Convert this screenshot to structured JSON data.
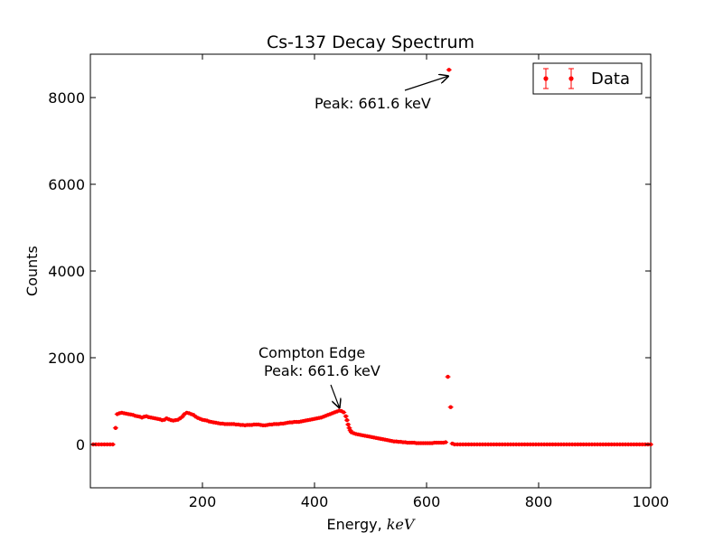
{
  "chart_data": {
    "type": "scatter",
    "title": "Cs-137 Decay Spectrum",
    "xlabel_prefix": "Energy, ",
    "xlabel_math": "keV",
    "ylabel": "Counts",
    "xlim": [
      0,
      1000
    ],
    "ylim": [
      -1000,
      9000
    ],
    "xticks": [
      200,
      400,
      600,
      800,
      1000
    ],
    "yticks": [
      0,
      2000,
      4000,
      6000,
      8000
    ],
    "xtick_labels": [
      "200",
      "400",
      "600",
      "800",
      "1000"
    ],
    "ytick_labels": [
      "0",
      "2000",
      "4000",
      "6000",
      "8000"
    ],
    "grid": false,
    "legend": {
      "position": "top-right",
      "entries": [
        {
          "label": "Data",
          "color": "#ff0000",
          "marker": "errorbar-dot"
        }
      ]
    },
    "marker_color": "#ff0000",
    "annotations": [
      {
        "text_lines": [
          "Peak: 661.6 keV"
        ],
        "text_at": [
          400,
          7750
        ],
        "arrow_to": [
          640,
          8500
        ]
      },
      {
        "text_lines": [
          "Compton Edge",
          "Peak: 661.6 keV"
        ],
        "text_at": [
          300,
          2000
        ],
        "arrow_to": [
          445,
          830
        ]
      }
    ],
    "series": [
      {
        "name": "Data",
        "points": [
          [
            5,
            0
          ],
          [
            10,
            0
          ],
          [
            15,
            0
          ],
          [
            20,
            0
          ],
          [
            25,
            0
          ],
          [
            30,
            0
          ],
          [
            35,
            0
          ],
          [
            40,
            0
          ],
          [
            45,
            380
          ],
          [
            48,
            700
          ],
          [
            52,
            720
          ],
          [
            56,
            730
          ],
          [
            60,
            720
          ],
          [
            64,
            710
          ],
          [
            68,
            700
          ],
          [
            72,
            690
          ],
          [
            76,
            680
          ],
          [
            80,
            660
          ],
          [
            84,
            650
          ],
          [
            88,
            640
          ],
          [
            92,
            620
          ],
          [
            96,
            640
          ],
          [
            100,
            650
          ],
          [
            104,
            630
          ],
          [
            108,
            620
          ],
          [
            112,
            610
          ],
          [
            116,
            600
          ],
          [
            120,
            590
          ],
          [
            124,
            580
          ],
          [
            128,
            560
          ],
          [
            132,
            570
          ],
          [
            136,
            600
          ],
          [
            140,
            580
          ],
          [
            144,
            560
          ],
          [
            148,
            550
          ],
          [
            152,
            560
          ],
          [
            156,
            570
          ],
          [
            160,
            600
          ],
          [
            164,
            640
          ],
          [
            168,
            700
          ],
          [
            172,
            730
          ],
          [
            176,
            720
          ],
          [
            180,
            700
          ],
          [
            184,
            680
          ],
          [
            188,
            640
          ],
          [
            192,
            610
          ],
          [
            196,
            590
          ],
          [
            200,
            570
          ],
          [
            204,
            560
          ],
          [
            208,
            550
          ],
          [
            212,
            530
          ],
          [
            216,
            520
          ],
          [
            220,
            510
          ],
          [
            224,
            500
          ],
          [
            228,
            490
          ],
          [
            232,
            480
          ],
          [
            236,
            480
          ],
          [
            240,
            470
          ],
          [
            244,
            470
          ],
          [
            248,
            470
          ],
          [
            252,
            470
          ],
          [
            256,
            470
          ],
          [
            260,
            460
          ],
          [
            264,
            460
          ],
          [
            268,
            450
          ],
          [
            272,
            450
          ],
          [
            276,
            440
          ],
          [
            280,
            450
          ],
          [
            284,
            450
          ],
          [
            288,
            450
          ],
          [
            292,
            460
          ],
          [
            296,
            460
          ],
          [
            300,
            460
          ],
          [
            304,
            450
          ],
          [
            308,
            440
          ],
          [
            312,
            440
          ],
          [
            316,
            450
          ],
          [
            320,
            460
          ],
          [
            324,
            460
          ],
          [
            328,
            470
          ],
          [
            332,
            470
          ],
          [
            336,
            470
          ],
          [
            340,
            480
          ],
          [
            344,
            480
          ],
          [
            348,
            490
          ],
          [
            352,
            500
          ],
          [
            356,
            510
          ],
          [
            360,
            510
          ],
          [
            364,
            520
          ],
          [
            368,
            520
          ],
          [
            372,
            520
          ],
          [
            376,
            530
          ],
          [
            380,
            540
          ],
          [
            384,
            550
          ],
          [
            388,
            560
          ],
          [
            392,
            570
          ],
          [
            396,
            580
          ],
          [
            400,
            590
          ],
          [
            404,
            600
          ],
          [
            408,
            610
          ],
          [
            412,
            620
          ],
          [
            416,
            640
          ],
          [
            420,
            660
          ],
          [
            424,
            680
          ],
          [
            428,
            700
          ],
          [
            432,
            720
          ],
          [
            436,
            740
          ],
          [
            440,
            760
          ],
          [
            444,
            780
          ],
          [
            448,
            770
          ],
          [
            452,
            740
          ],
          [
            456,
            650
          ],
          [
            458,
            560
          ],
          [
            460,
            460
          ],
          [
            462,
            380
          ],
          [
            464,
            320
          ],
          [
            466,
            280
          ],
          [
            470,
            260
          ],
          [
            474,
            240
          ],
          [
            478,
            230
          ],
          [
            482,
            220
          ],
          [
            486,
            210
          ],
          [
            490,
            200
          ],
          [
            494,
            190
          ],
          [
            498,
            180
          ],
          [
            502,
            170
          ],
          [
            506,
            160
          ],
          [
            510,
            150
          ],
          [
            514,
            140
          ],
          [
            518,
            130
          ],
          [
            522,
            120
          ],
          [
            526,
            110
          ],
          [
            530,
            100
          ],
          [
            534,
            90
          ],
          [
            538,
            80
          ],
          [
            542,
            70
          ],
          [
            546,
            70
          ],
          [
            550,
            60
          ],
          [
            554,
            60
          ],
          [
            558,
            50
          ],
          [
            562,
            50
          ],
          [
            566,
            40
          ],
          [
            570,
            40
          ],
          [
            574,
            40
          ],
          [
            578,
            40
          ],
          [
            582,
            30
          ],
          [
            586,
            30
          ],
          [
            590,
            30
          ],
          [
            594,
            30
          ],
          [
            598,
            30
          ],
          [
            602,
            30
          ],
          [
            606,
            30
          ],
          [
            610,
            30
          ],
          [
            614,
            40
          ],
          [
            618,
            40
          ],
          [
            622,
            40
          ],
          [
            626,
            40
          ],
          [
            630,
            40
          ],
          [
            634,
            50
          ],
          [
            638,
            1560
          ],
          [
            640,
            8640
          ],
          [
            643,
            860
          ],
          [
            646,
            20
          ],
          [
            650,
            0
          ],
          [
            655,
            0
          ],
          [
            660,
            0
          ],
          [
            665,
            0
          ],
          [
            670,
            0
          ],
          [
            675,
            0
          ],
          [
            680,
            0
          ],
          [
            685,
            0
          ],
          [
            690,
            0
          ],
          [
            695,
            0
          ],
          [
            700,
            0
          ],
          [
            705,
            0
          ],
          [
            710,
            0
          ],
          [
            715,
            0
          ],
          [
            720,
            0
          ],
          [
            725,
            0
          ],
          [
            730,
            0
          ],
          [
            735,
            0
          ],
          [
            740,
            0
          ],
          [
            745,
            0
          ],
          [
            750,
            0
          ],
          [
            755,
            0
          ],
          [
            760,
            0
          ],
          [
            765,
            0
          ],
          [
            770,
            0
          ],
          [
            775,
            0
          ],
          [
            780,
            0
          ],
          [
            785,
            0
          ],
          [
            790,
            0
          ],
          [
            795,
            0
          ],
          [
            800,
            0
          ],
          [
            805,
            0
          ],
          [
            810,
            0
          ],
          [
            815,
            0
          ],
          [
            820,
            0
          ],
          [
            825,
            0
          ],
          [
            830,
            0
          ],
          [
            835,
            0
          ],
          [
            840,
            0
          ],
          [
            845,
            0
          ],
          [
            850,
            0
          ],
          [
            855,
            0
          ],
          [
            860,
            0
          ],
          [
            865,
            0
          ],
          [
            870,
            0
          ],
          [
            875,
            0
          ],
          [
            880,
            0
          ],
          [
            885,
            0
          ],
          [
            890,
            0
          ],
          [
            895,
            0
          ],
          [
            900,
            0
          ],
          [
            905,
            0
          ],
          [
            910,
            0
          ],
          [
            915,
            0
          ],
          [
            920,
            0
          ],
          [
            925,
            0
          ],
          [
            930,
            0
          ],
          [
            935,
            0
          ],
          [
            940,
            0
          ],
          [
            945,
            0
          ],
          [
            950,
            0
          ],
          [
            955,
            0
          ],
          [
            960,
            0
          ],
          [
            965,
            0
          ],
          [
            970,
            0
          ],
          [
            975,
            0
          ],
          [
            980,
            0
          ],
          [
            985,
            0
          ],
          [
            990,
            0
          ],
          [
            995,
            0
          ],
          [
            1000,
            0
          ]
        ]
      }
    ]
  }
}
